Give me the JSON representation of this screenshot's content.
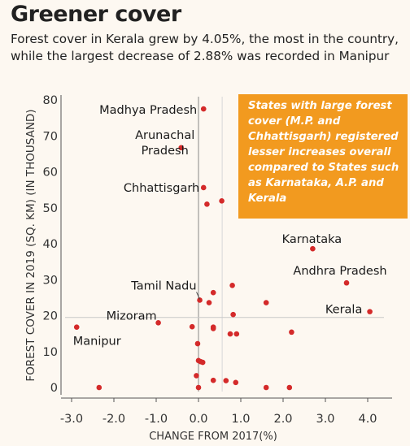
{
  "header": {
    "title": "Greener cover",
    "subtitle": "Forest cover in Kerala grew by 4.05%, the most in the country, while the largest decrease of 2.88% was recorded in Manipur"
  },
  "callout": {
    "text": "States with large forest cover (M.P. and Chhattisgarh) registered lesser increases overall compared to States such as Karnataka, A.P. and Kerala"
  },
  "chart_data": {
    "type": "scatter",
    "xlabel": "CHANGE FROM 2017(%)",
    "ylabel": "FOREST COVER IN 2019 (SQ. KM) (IN THOUSAND)",
    "xlim": [
      -3.0,
      4.0
    ],
    "ylim": [
      0,
      80
    ],
    "xticks": [
      "-3.0",
      "-2.0",
      "-1.0",
      "0.0",
      "1.0",
      "2.0",
      "3.0",
      "4.0"
    ],
    "yticks": [
      "0",
      "10",
      "20",
      "30",
      "40",
      "50",
      "60",
      "70",
      "80"
    ],
    "reference_lines": {
      "x": [
        0.0,
        0.56
      ],
      "y": [
        19.5
      ]
    },
    "colors": {
      "points": "#d42a2a",
      "callout": "#f29a1f",
      "grid": "#c8c8c8",
      "axis": "#555555"
    },
    "points": [
      {
        "x": 0.12,
        "y": 77.5,
        "label": "Madhya Pradesh"
      },
      {
        "x": -0.41,
        "y": 66.7,
        "label": "Arunachal Pradesh"
      },
      {
        "x": 0.12,
        "y": 55.6,
        "label": "Chhattisgarh"
      },
      {
        "x": 2.7,
        "y": 38.6,
        "label": "Karnataka"
      },
      {
        "x": 3.5,
        "y": 29.1,
        "label": "Andhra Pradesh"
      },
      {
        "x": 0.03,
        "y": 24.3,
        "label": "Tamil Nadu"
      },
      {
        "x": -0.95,
        "y": 18.0,
        "label": "Mizoram"
      },
      {
        "x": 4.05,
        "y": 21.1,
        "label": "Kerala"
      },
      {
        "x": -2.88,
        "y": 16.8,
        "label": "Manipur"
      },
      {
        "x": 0.55,
        "y": 51.9
      },
      {
        "x": 0.2,
        "y": 51.0
      },
      {
        "x": 0.8,
        "y": 28.4
      },
      {
        "x": 0.35,
        "y": 26.4
      },
      {
        "x": 0.25,
        "y": 23.6
      },
      {
        "x": 1.6,
        "y": 23.6
      },
      {
        "x": 0.82,
        "y": 20.3
      },
      {
        "x": -0.15,
        "y": 16.9
      },
      {
        "x": 0.35,
        "y": 16.8
      },
      {
        "x": 0.35,
        "y": 16.4
      },
      {
        "x": 0.75,
        "y": 14.9
      },
      {
        "x": 0.9,
        "y": 14.9
      },
      {
        "x": 2.2,
        "y": 15.4
      },
      {
        "x": -0.02,
        "y": 12.2
      },
      {
        "x": 0.0,
        "y": 7.5
      },
      {
        "x": 0.05,
        "y": 7.2
      },
      {
        "x": 0.1,
        "y": 7.0
      },
      {
        "x": -0.05,
        "y": 3.3
      },
      {
        "x": 0.35,
        "y": 2.0
      },
      {
        "x": 0.65,
        "y": 1.9
      },
      {
        "x": 0.88,
        "y": 1.4
      },
      {
        "x": -2.35,
        "y": 0.0
      },
      {
        "x": 0.0,
        "y": 0.0
      },
      {
        "x": 1.6,
        "y": 0.0
      },
      {
        "x": 2.15,
        "y": 0.0
      }
    ]
  }
}
